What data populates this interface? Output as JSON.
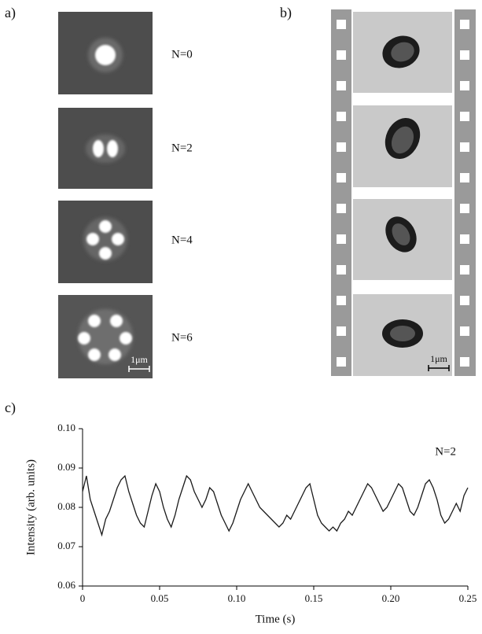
{
  "panel_labels": [
    "a)",
    "b)",
    "c)"
  ],
  "panel_a": {
    "labels": [
      "N=0",
      "N=2",
      "N=4",
      "N=6"
    ],
    "scale_bar": "1μm"
  },
  "panel_b": {
    "scale_bar": "1μm"
  },
  "chart_data": {
    "type": "line",
    "xlabel": "Time (s)",
    "ylabel": "Intensity (arb. units)",
    "annotation": "N=2",
    "color": "#1a1a1a",
    "x": [
      0,
      0.0025,
      0.005,
      0.0075,
      0.01,
      0.0125,
      0.015,
      0.0175,
      0.02,
      0.0225,
      0.025,
      0.0275,
      0.03,
      0.0325,
      0.035,
      0.0375,
      0.04,
      0.0425,
      0.045,
      0.0475,
      0.05,
      0.0525,
      0.055,
      0.0575,
      0.06,
      0.0625,
      0.065,
      0.0675,
      0.07,
      0.0725,
      0.075,
      0.0775,
      0.08,
      0.0825,
      0.085,
      0.0875,
      0.09,
      0.0925,
      0.095,
      0.0975,
      0.1,
      0.1025,
      0.105,
      0.1075,
      0.11,
      0.1125,
      0.115,
      0.1175,
      0.12,
      0.1225,
      0.125,
      0.1275,
      0.13,
      0.1325,
      0.135,
      0.1375,
      0.14,
      0.1425,
      0.145,
      0.1475,
      0.15,
      0.1525,
      0.155,
      0.1575,
      0.16,
      0.1625,
      0.165,
      0.1675,
      0.17,
      0.1725,
      0.175,
      0.1775,
      0.18,
      0.1825,
      0.185,
      0.1875,
      0.19,
      0.1925,
      0.195,
      0.1975,
      0.2,
      0.2025,
      0.205,
      0.2075,
      0.21,
      0.2125,
      0.215,
      0.2175,
      0.22,
      0.2225,
      0.225,
      0.2275,
      0.23,
      0.2325,
      0.235,
      0.2375,
      0.24,
      0.2425,
      0.245,
      0.2475,
      0.25
    ],
    "values": [
      0.084,
      0.088,
      0.082,
      0.079,
      0.076,
      0.073,
      0.077,
      0.079,
      0.082,
      0.085,
      0.087,
      0.088,
      0.084,
      0.081,
      0.078,
      0.076,
      0.075,
      0.079,
      0.083,
      0.086,
      0.084,
      0.08,
      0.077,
      0.075,
      0.078,
      0.082,
      0.085,
      0.088,
      0.087,
      0.084,
      0.082,
      0.08,
      0.082,
      0.085,
      0.084,
      0.081,
      0.078,
      0.076,
      0.074,
      0.076,
      0.079,
      0.082,
      0.084,
      0.086,
      0.084,
      0.082,
      0.08,
      0.079,
      0.078,
      0.077,
      0.076,
      0.075,
      0.076,
      0.078,
      0.077,
      0.079,
      0.081,
      0.083,
      0.085,
      0.086,
      0.082,
      0.078,
      0.076,
      0.075,
      0.074,
      0.075,
      0.074,
      0.076,
      0.077,
      0.079,
      0.078,
      0.08,
      0.082,
      0.084,
      0.086,
      0.085,
      0.083,
      0.081,
      0.079,
      0.08,
      0.082,
      0.084,
      0.086,
      0.085,
      0.082,
      0.079,
      0.078,
      0.08,
      0.083,
      0.086,
      0.087,
      0.085,
      0.082,
      0.078,
      0.076,
      0.077,
      0.079,
      0.081,
      0.079,
      0.083,
      0.085
    ],
    "xlim": [
      0,
      0.25
    ],
    "ylim": [
      0.06,
      0.1
    ],
    "xticks": [
      0,
      0.05,
      {
        "value": 0.1,
        "label": "0.10"
      },
      0.15,
      {
        "value": 0.2,
        "label": "0.20"
      },
      0.25
    ],
    "yticks": [
      0.06,
      0.07,
      0.08,
      0.09,
      {
        "value": 0.1,
        "label": "0.10"
      }
    ]
  }
}
